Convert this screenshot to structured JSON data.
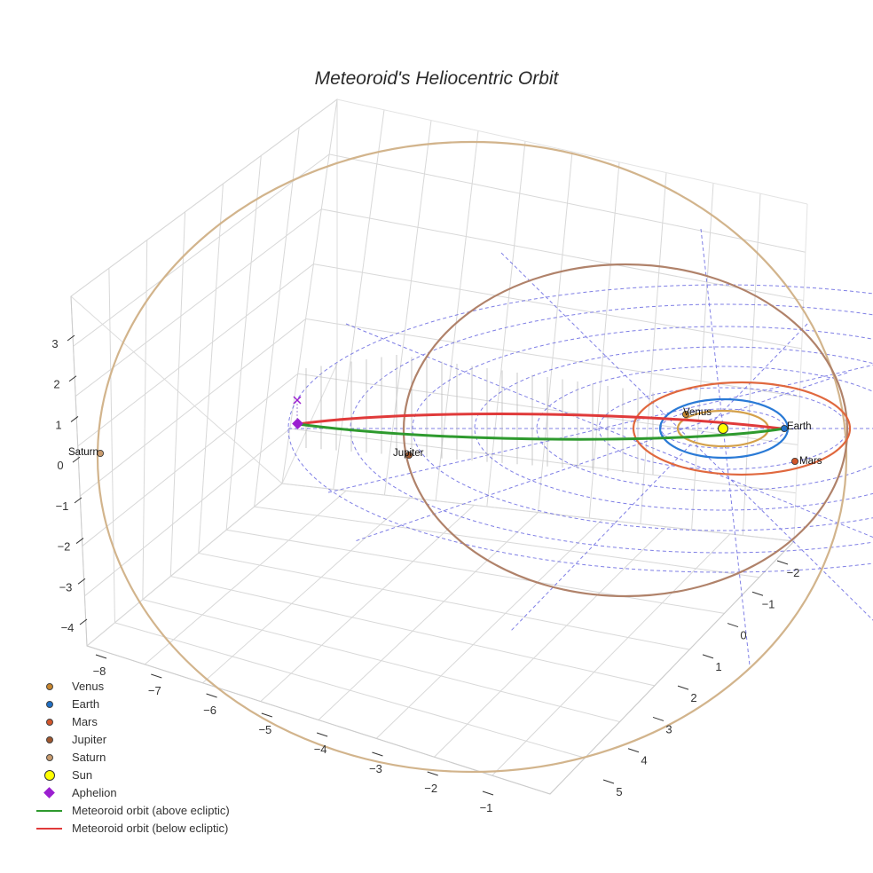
{
  "chart_data": {
    "type": "scatter",
    "title": "Meteoroid's Heliocentric Orbit",
    "x_ticks": [
      "−8",
      "−7",
      "−6",
      "−5",
      "−4",
      "−3",
      "−2",
      "−1"
    ],
    "y_ticks": [
      "−2",
      "−1",
      "0",
      "1",
      "2",
      "3",
      "4",
      "5"
    ],
    "z_ticks": [
      "3",
      "2",
      "1",
      "0",
      "−1",
      "−2",
      "−3",
      "−4"
    ],
    "planets": [
      {
        "name": "Venus",
        "label": "Venus",
        "color": "#c8862e",
        "orbit_color": "#d4a04a",
        "semi_major_axis_au": 0.72
      },
      {
        "name": "Earth",
        "label": "Earth",
        "color": "#1f6fc4",
        "orbit_color": "#2a7ad6",
        "semi_major_axis_au": 1.0
      },
      {
        "name": "Mars",
        "label": "Mars",
        "color": "#d2552a",
        "orbit_color": "#e0683e",
        "semi_major_axis_au": 1.52
      },
      {
        "name": "Jupiter",
        "label": "Jupiter",
        "color": "#a0572e",
        "orbit_color": "#b0826a",
        "semi_major_axis_au": 5.2
      },
      {
        "name": "Saturn",
        "label": "Saturn",
        "color": "#c89b6e",
        "orbit_color": "#d2b48c",
        "semi_major_axis_au": 9.54
      }
    ],
    "sun": {
      "name": "Sun",
      "color": "#ffff00"
    },
    "aphelion": {
      "name": "Aphelion",
      "color": "#9b1fd0",
      "x_au": -8.5,
      "y_au": 0.0,
      "z_au": 0.2
    },
    "meteoroid_orbit": [
      {
        "name": "Meteoroid orbit (above ecliptic)",
        "color": "#2e9a2e"
      },
      {
        "name": "Meteoroid orbit (below ecliptic)",
        "color": "#e03a3a"
      }
    ],
    "ecliptic_grid_color": "#5555dd"
  },
  "legend": {
    "items": [
      {
        "label": "Venus",
        "color": "#c8862e",
        "symbol": "dot"
      },
      {
        "label": "Earth",
        "color": "#1f6fc4",
        "symbol": "dot"
      },
      {
        "label": "Mars",
        "color": "#d2552a",
        "symbol": "dot"
      },
      {
        "label": "Jupiter",
        "color": "#a0572e",
        "symbol": "dot"
      },
      {
        "label": "Saturn",
        "color": "#c89b6e",
        "symbol": "dot"
      },
      {
        "label": "Sun",
        "color": "#ffff00",
        "symbol": "sun"
      },
      {
        "label": "Aphelion",
        "color": "#9b1fd0",
        "symbol": "diamond"
      },
      {
        "label": "Meteoroid orbit (above ecliptic)",
        "color": "#2e9a2e",
        "symbol": "line"
      },
      {
        "label": "Meteoroid orbit (below ecliptic)",
        "color": "#e03a3a",
        "symbol": "line"
      }
    ]
  }
}
